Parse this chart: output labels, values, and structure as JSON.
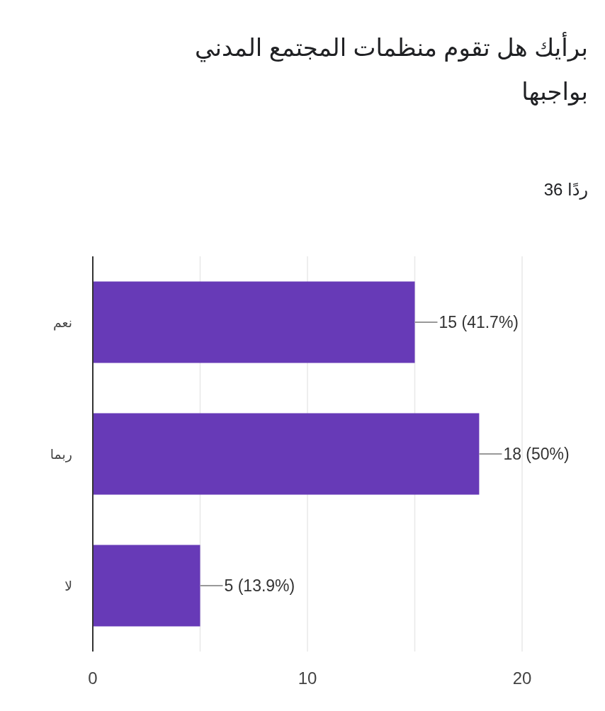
{
  "chart_data": {
    "type": "bar",
    "orientation": "horizontal",
    "title": "برأيك هل تقوم منظمات المجتمع المدني بواجبها",
    "subtitle": "36 ردًا",
    "categories": [
      "نعم",
      "ربما",
      "لا"
    ],
    "values": [
      15,
      18,
      5
    ],
    "value_labels": [
      "15 (41.7%)",
      "18 (50%)",
      "5 (13.9%)"
    ],
    "color": "#673ab7",
    "xlim": [
      0,
      20
    ],
    "xticks": [
      0,
      {
        "value": 5,
        "label": null
      },
      10,
      {
        "value": 15,
        "label": null
      },
      20
    ],
    "grid": "x"
  }
}
